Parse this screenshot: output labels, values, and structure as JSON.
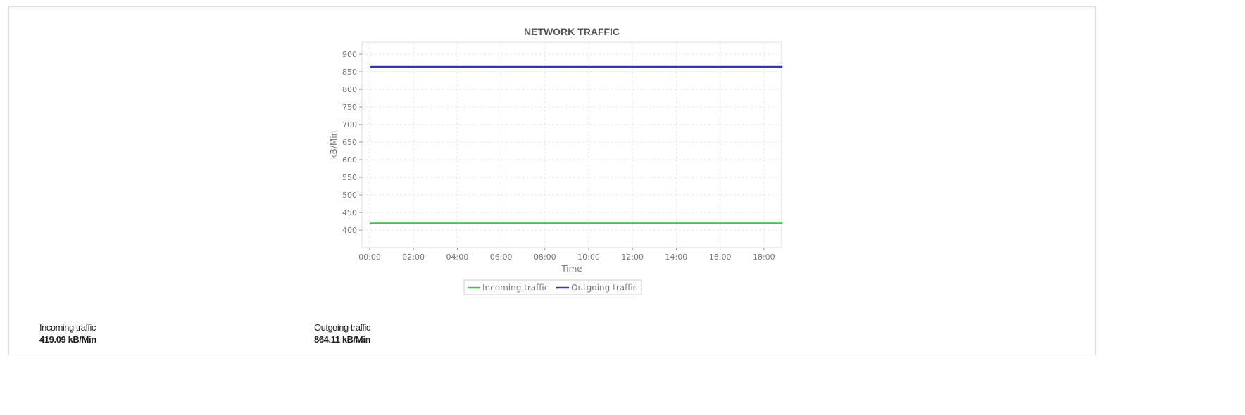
{
  "chart_data": {
    "type": "line",
    "title": "NETWORK TRAFFIC",
    "xlabel": "Time",
    "ylabel": "kB/Min",
    "x_ticks": [
      "00:00",
      "02:00",
      "04:00",
      "06:00",
      "08:00",
      "10:00",
      "12:00",
      "14:00",
      "16:00",
      "18:00"
    ],
    "y_ticks": [
      400,
      450,
      500,
      550,
      600,
      650,
      700,
      750,
      800,
      850,
      900
    ],
    "ylim": [
      350,
      934
    ],
    "xlim_hours": [
      -0.2,
      20.5
    ],
    "grid": true,
    "legend_placement": "bottom",
    "series": [
      {
        "name": "Incoming traffic",
        "color": "#33cc33",
        "x_hours": [
          0,
          18.85
        ],
        "values": [
          419.09,
          419.09
        ]
      },
      {
        "name": "Outgoing traffic",
        "color": "#3333cc",
        "x_hours": [
          0,
          18.85
        ],
        "values": [
          864.11,
          864.11
        ]
      }
    ]
  },
  "stats": [
    {
      "label": "Incoming traffic",
      "value": "419.09 kB/Min"
    },
    {
      "label": "Outgoing traffic",
      "value": "864.11 kB/Min"
    }
  ]
}
